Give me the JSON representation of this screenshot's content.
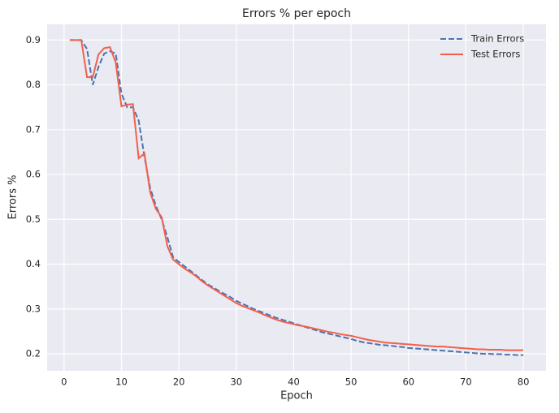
{
  "chart_data": {
    "type": "line",
    "title": "Errors % per epoch",
    "x_label": "Epoch",
    "y_label": "Errors %",
    "x": [
      1,
      2,
      3,
      4,
      5,
      6,
      7,
      8,
      9,
      10,
      11,
      12,
      13,
      14,
      15,
      16,
      17,
      18,
      19,
      20,
      21,
      22,
      23,
      24,
      25,
      26,
      27,
      28,
      29,
      30,
      31,
      32,
      33,
      34,
      35,
      36,
      37,
      38,
      39,
      40,
      41,
      42,
      43,
      44,
      45,
      46,
      47,
      48,
      49,
      50,
      51,
      52,
      53,
      54,
      55,
      56,
      57,
      58,
      59,
      60,
      61,
      62,
      63,
      64,
      65,
      66,
      67,
      68,
      69,
      70,
      71,
      72,
      73,
      74,
      75,
      76,
      77,
      78,
      79,
      80
    ],
    "series": [
      {
        "name": "Train Errors",
        "color": "#4c72b0",
        "linestyle": "dashed",
        "values": [
          0.9,
          0.9,
          0.9,
          0.88,
          0.8,
          0.84,
          0.87,
          0.875,
          0.87,
          0.78,
          0.75,
          0.75,
          0.72,
          0.64,
          0.57,
          0.53,
          0.5,
          0.46,
          0.415,
          0.405,
          0.395,
          0.385,
          0.375,
          0.365,
          0.355,
          0.348,
          0.34,
          0.333,
          0.326,
          0.318,
          0.312,
          0.306,
          0.3,
          0.295,
          0.29,
          0.285,
          0.28,
          0.276,
          0.272,
          0.268,
          0.264,
          0.26,
          0.256,
          0.252,
          0.248,
          0.245,
          0.242,
          0.239,
          0.236,
          0.233,
          0.229,
          0.226,
          0.224,
          0.222,
          0.22,
          0.219,
          0.218,
          0.216,
          0.215,
          0.213,
          0.212,
          0.211,
          0.21,
          0.209,
          0.208,
          0.207,
          0.206,
          0.205,
          0.204,
          0.203,
          0.202,
          0.201,
          0.2,
          0.2,
          0.199,
          0.199,
          0.198,
          0.198,
          0.197,
          0.197
        ]
      },
      {
        "name": "Test Errors",
        "color": "#f2604a",
        "linestyle": "solid",
        "values": [
          0.9,
          0.9,
          0.9,
          0.817,
          0.817,
          0.868,
          0.882,
          0.884,
          0.85,
          0.752,
          0.756,
          0.757,
          0.636,
          0.647,
          0.56,
          0.523,
          0.505,
          0.44,
          0.41,
          0.4,
          0.39,
          0.382,
          0.373,
          0.362,
          0.353,
          0.345,
          0.337,
          0.329,
          0.321,
          0.313,
          0.307,
          0.302,
          0.297,
          0.292,
          0.286,
          0.281,
          0.276,
          0.272,
          0.269,
          0.266,
          0.263,
          0.261,
          0.258,
          0.255,
          0.252,
          0.249,
          0.247,
          0.244,
          0.242,
          0.24,
          0.237,
          0.234,
          0.231,
          0.229,
          0.227,
          0.225,
          0.224,
          0.223,
          0.222,
          0.221,
          0.22,
          0.219,
          0.218,
          0.217,
          0.216,
          0.216,
          0.215,
          0.214,
          0.213,
          0.212,
          0.211,
          0.21,
          0.21,
          0.209,
          0.209,
          0.209,
          0.208,
          0.208,
          0.208,
          0.208
        ]
      }
    ],
    "xlim": [
      -2.95,
      83.95
    ],
    "xticks": [
      0,
      10,
      20,
      30,
      40,
      50,
      60,
      70,
      80
    ],
    "ylim": [
      0.162,
      0.935
    ],
    "yticks": [
      0.2,
      0.3,
      0.4,
      0.5,
      0.6,
      0.7,
      0.8,
      0.9
    ],
    "grid": true,
    "legend": "upper right"
  }
}
